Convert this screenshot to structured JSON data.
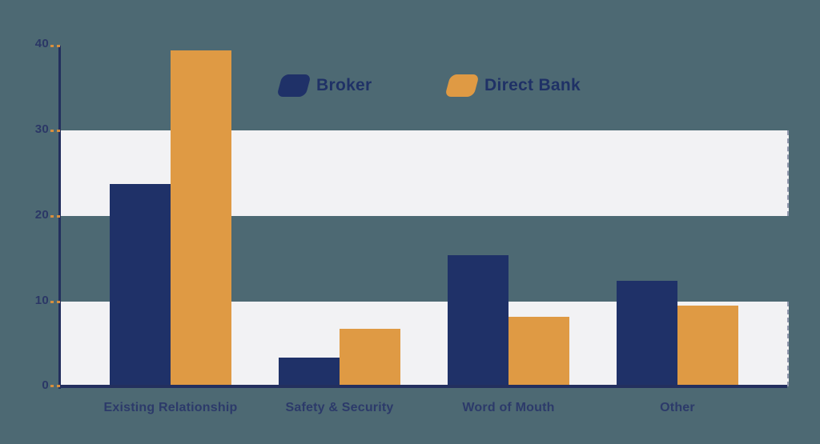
{
  "chart_data": {
    "type": "bar",
    "title": "",
    "categories": [
      "Existing Relationship",
      "Safety & Security",
      "Word of Mouth",
      "Other"
    ],
    "series": [
      {
        "name": "Broker",
        "color": "#1f3168",
        "values": [
          23.8,
          3.4,
          15.4,
          12.4
        ]
      },
      {
        "name": "Direct Bank",
        "color": "#df9a44",
        "values": [
          39.4,
          6.8,
          8.2,
          9.5
        ]
      }
    ],
    "ylim": [
      0,
      40
    ],
    "yticks": [
      "40",
      "30",
      "20",
      "10",
      "0"
    ],
    "xlabel": "",
    "ylabel": "",
    "grid": "horizontal highlight bands spanning 0-10 and 20-30",
    "legend_position": "top-center"
  },
  "colors": {
    "background": "#4d6973",
    "band": "#f2f2f4",
    "axis": "#232f5e",
    "tick_mark": "#d78f3e",
    "tick_text": "#2b3766",
    "category_text": "#2c3a6a",
    "legend_text": "#1f3166"
  }
}
